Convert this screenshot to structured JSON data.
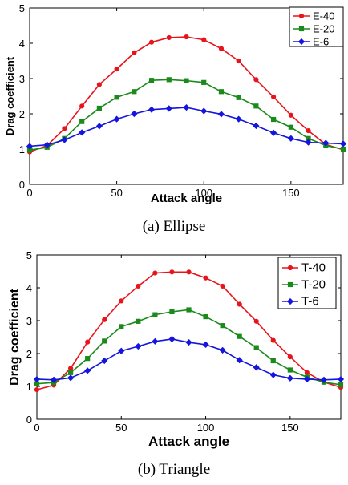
{
  "chart_data": [
    {
      "type": "line",
      "caption": "(a) Ellipse",
      "xlabel": "Attack angle",
      "ylabel": "Drag coefficient",
      "xlim": [
        0,
        180
      ],
      "ylim": [
        0,
        5
      ],
      "xticks": [
        0,
        50,
        100,
        150
      ],
      "yticks": [
        0,
        1,
        2,
        3,
        4,
        5
      ],
      "legend_position": "top-right",
      "grid": false,
      "x": [
        0,
        10,
        20,
        30,
        40,
        50,
        60,
        70,
        80,
        90,
        100,
        110,
        120,
        130,
        140,
        150,
        160,
        170,
        180
      ],
      "series": [
        {
          "name": "E-40",
          "color": "#e8141c",
          "marker": "circle",
          "values": [
            0.92,
            1.1,
            1.58,
            2.22,
            2.83,
            3.27,
            3.73,
            4.03,
            4.16,
            4.18,
            4.1,
            3.85,
            3.5,
            2.97,
            2.48,
            1.96,
            1.52,
            1.13,
            0.98
          ]
        },
        {
          "name": "E-20",
          "color": "#1a8a1a",
          "marker": "square",
          "values": [
            0.97,
            1.05,
            1.3,
            1.78,
            2.16,
            2.47,
            2.63,
            2.95,
            2.97,
            2.94,
            2.89,
            2.63,
            2.46,
            2.22,
            1.84,
            1.62,
            1.3,
            1.1,
            1.0
          ]
        },
        {
          "name": "E-6",
          "color": "#1515dd",
          "marker": "diamond",
          "values": [
            1.08,
            1.12,
            1.26,
            1.47,
            1.65,
            1.85,
            2.0,
            2.12,
            2.15,
            2.18,
            2.08,
            1.99,
            1.85,
            1.66,
            1.46,
            1.3,
            1.19,
            1.17,
            1.15
          ]
        }
      ]
    },
    {
      "type": "line",
      "caption": "(b) Triangle",
      "xlabel": "Attack angle",
      "ylabel": "Drag coefficient",
      "xlim": [
        0,
        180
      ],
      "ylim": [
        0,
        5
      ],
      "xticks": [
        0,
        50,
        100,
        150
      ],
      "yticks": [
        0,
        1,
        2,
        3,
        4,
        5
      ],
      "legend_position": "top-right",
      "grid": false,
      "x": [
        0,
        10,
        20,
        30,
        40,
        50,
        60,
        70,
        80,
        90,
        100,
        110,
        120,
        130,
        140,
        150,
        160,
        170,
        180
      ],
      "series": [
        {
          "name": "T-40",
          "color": "#e8141c",
          "marker": "circle",
          "values": [
            0.9,
            1.04,
            1.55,
            2.35,
            3.03,
            3.6,
            4.05,
            4.45,
            4.48,
            4.48,
            4.3,
            4.05,
            3.5,
            2.98,
            2.4,
            1.9,
            1.42,
            1.13,
            0.97
          ]
        },
        {
          "name": "T-20",
          "color": "#1a8a1a",
          "marker": "square",
          "values": [
            1.08,
            1.12,
            1.42,
            1.85,
            2.38,
            2.82,
            2.98,
            3.18,
            3.27,
            3.33,
            3.12,
            2.85,
            2.52,
            2.18,
            1.78,
            1.5,
            1.28,
            1.13,
            1.05
          ]
        },
        {
          "name": "T-6",
          "color": "#1515dd",
          "marker": "diamond",
          "values": [
            1.22,
            1.2,
            1.26,
            1.48,
            1.78,
            2.08,
            2.22,
            2.37,
            2.44,
            2.34,
            2.27,
            2.1,
            1.8,
            1.58,
            1.35,
            1.25,
            1.22,
            1.2,
            1.22
          ]
        }
      ]
    }
  ]
}
